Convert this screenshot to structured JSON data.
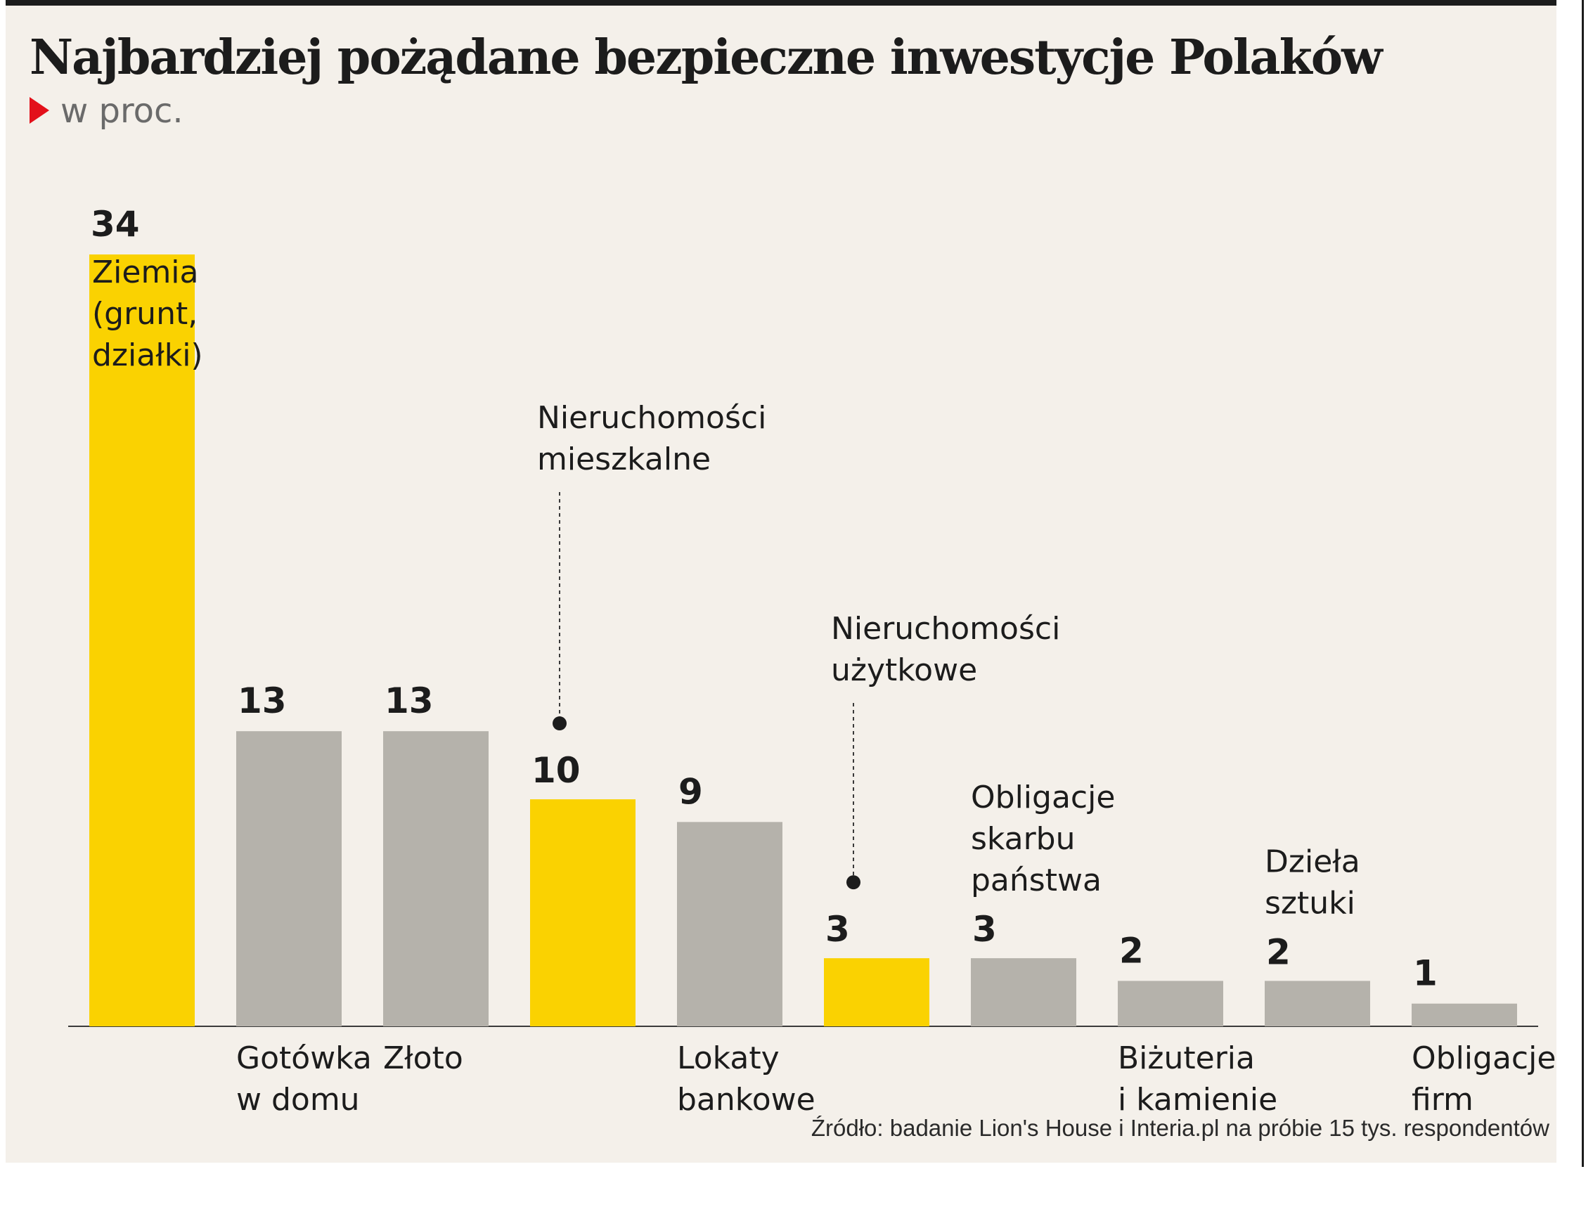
{
  "title": "Najbardziej pożądane bezpieczne inwestycje Polaków",
  "subtitle": "w proc.",
  "source": "Źródło: badanie Lion's House i Interia.pl na próbie 15 tys. respondentów",
  "colors": {
    "highlight": "#fad201",
    "neutral": "#b5b2ab",
    "text": "#1c1c1c",
    "marker": "#e3101a",
    "background": "#f4f0ea"
  },
  "chart_data": {
    "type": "bar",
    "categories": [
      [
        "Ziemia",
        "(grunt,",
        "działki)"
      ],
      [
        "Gotówka",
        "w domu"
      ],
      [
        "Złoto"
      ],
      [
        "Nieruchomości",
        "mieszkalne"
      ],
      [
        "Lokaty",
        "bankowe"
      ],
      [
        "Nieruchomości",
        "użytkowe"
      ],
      [
        "Obligacje",
        "skarbu",
        "państwa"
      ],
      [
        "Biżuteria",
        "i kamienie"
      ],
      [
        "Dzieła",
        "sztuki"
      ],
      [
        "Obligacje",
        "firm"
      ]
    ],
    "values": [
      34,
      13,
      13,
      10,
      9,
      3,
      3,
      2,
      2,
      1
    ],
    "highlighted": [
      true,
      false,
      false,
      true,
      false,
      true,
      false,
      false,
      false,
      false
    ],
    "ylim": [
      0,
      34
    ],
    "grid": false,
    "legend": "none"
  }
}
